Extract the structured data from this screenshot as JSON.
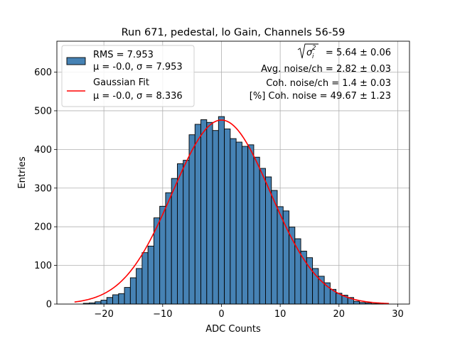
{
  "chart_data": {
    "type": "bar",
    "title": "Run 671, pedestal, lo Gain, Channels 56-59",
    "xlabel": "ADC Counts",
    "ylabel": "Entries",
    "xlim": [
      -28,
      32
    ],
    "ylim": [
      0,
      680
    ],
    "xticks": [
      -20,
      -10,
      0,
      10,
      20,
      30
    ],
    "yticks": [
      0,
      100,
      200,
      300,
      400,
      500,
      600
    ],
    "grid": true,
    "bin_width": 1,
    "histogram": {
      "name": "RMS = 7.953",
      "stats": "μ = -0.0, σ = 7.953",
      "color": "#4682b4",
      "edgecolor": "#000000",
      "x": [
        -23,
        -22,
        -21,
        -20,
        -19,
        -18,
        -17,
        -16,
        -15,
        -14,
        -13,
        -12,
        -11,
        -10,
        -9,
        -8,
        -7,
        -6,
        -5,
        -4,
        -3,
        -2,
        -1,
        0,
        1,
        2,
        3,
        4,
        5,
        6,
        7,
        8,
        9,
        10,
        11,
        12,
        13,
        14,
        15,
        16,
        17,
        18,
        19,
        20,
        21,
        22,
        23,
        24,
        25,
        26,
        27
      ],
      "values": [
        2,
        3,
        6,
        10,
        17,
        24,
        27,
        43,
        68,
        92,
        133,
        150,
        223,
        253,
        288,
        325,
        363,
        372,
        438,
        465,
        477,
        470,
        449,
        485,
        453,
        428,
        419,
        408,
        412,
        380,
        351,
        329,
        294,
        252,
        241,
        199,
        169,
        137,
        120,
        92,
        72,
        55,
        38,
        28,
        23,
        17,
        7,
        4,
        3,
        1,
        1
      ]
    },
    "fit": {
      "name": "Gaussian Fit",
      "stats": "μ = -0.0, σ = 8.336",
      "color": "#ff0000",
      "mu": 0.0,
      "sigma": 8.336,
      "amplitude": 476,
      "x_range": [
        -25,
        28.5
      ]
    },
    "legend_location": "upper left",
    "annotations": {
      "sigma_prefix": "= 5.64 ± 0.06",
      "avg_noise": "Avg. noise/ch = 2.82 ± 0.03",
      "coh_noise": "Coh. noise/ch = 1.4 ± 0.03",
      "pct_coh_noise": "[%] Coh. noise = 49.67 ± 1.23"
    }
  }
}
